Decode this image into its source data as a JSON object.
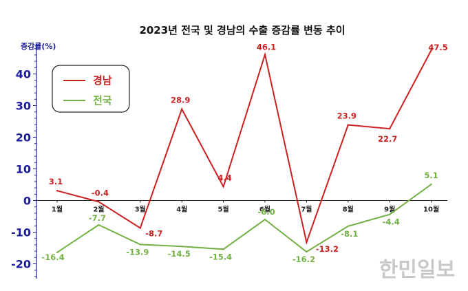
{
  "chart_data": {
    "type": "line",
    "title": "2023년 전국 및 경남의 수출 증감률 변동 추이",
    "ylabel": "증감률(%)",
    "categories": [
      "1월",
      "2월",
      "3월",
      "4월",
      "5월",
      "6월",
      "7월",
      "8월",
      "9월",
      "10월"
    ],
    "ylim": [
      -25,
      50
    ],
    "yticks": [
      -20,
      -10,
      0,
      10,
      20,
      30,
      40
    ],
    "legend_position": "top-left",
    "series": [
      {
        "name": "경남",
        "color": "#cc1f1f",
        "values": [
          3.1,
          -0.4,
          -8.7,
          28.9,
          4.4,
          46.1,
          -13.2,
          23.9,
          22.7,
          47.5
        ],
        "labels": [
          "3.1",
          "-0.4",
          "-8.7",
          "28.9",
          "4.4",
          "46.1",
          "-13.2",
          "23.9",
          "22.7",
          "47.5"
        ]
      },
      {
        "name": "전국",
        "color": "#72b043",
        "values": [
          -16.4,
          -7.7,
          -13.9,
          -14.5,
          -15.4,
          -6.0,
          -16.2,
          -8.1,
          -4.4,
          5.1
        ],
        "labels": [
          "-16.4",
          "-7.7",
          "-13.9",
          "-14.5",
          "-15.4",
          "-6.0",
          "-16.2",
          "-8.1",
          "-4.4",
          "5.1"
        ]
      }
    ],
    "axis_color": "#1a1a9e"
  },
  "watermark": "한민일보"
}
